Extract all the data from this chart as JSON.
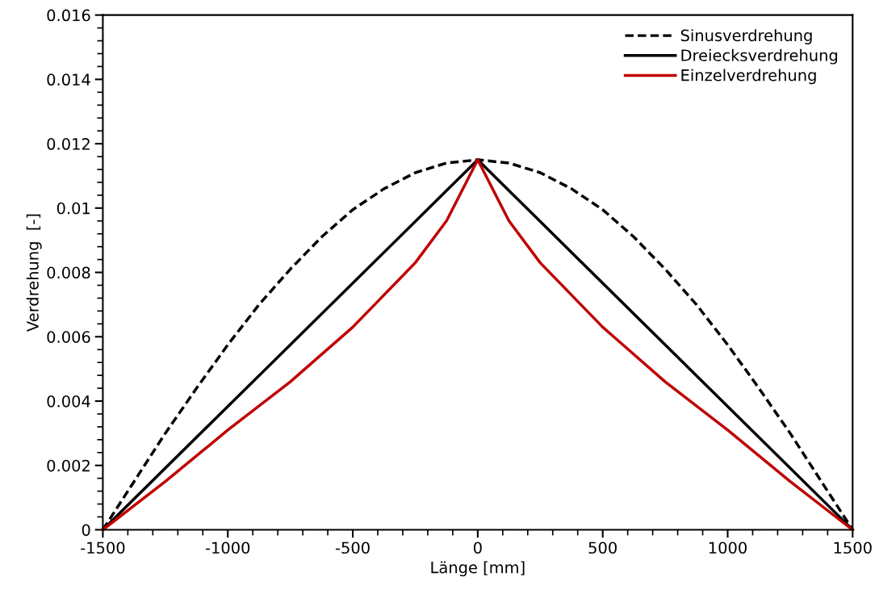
{
  "chart_data": {
    "type": "line",
    "xlabel": "Länge [mm]",
    "ylabel": "Verdrehung  [-]",
    "xlim": [
      -1500,
      1500
    ],
    "xticks": [
      -1500,
      -1000,
      -500,
      0,
      500,
      1000,
      1500
    ],
    "ylim": [
      0,
      0.016
    ],
    "yticks": [
      {
        "value": 0,
        "label": "0"
      },
      0.002,
      0.004,
      0.006,
      0.008,
      0.01,
      0.012,
      0.014,
      0.016
    ],
    "grid": false,
    "legend": "top right",
    "marker": "none",
    "series": [
      {
        "name": "Sinusverdrehung",
        "color": "#000000",
        "line_style": "dashed",
        "x": [
          -1500,
          -1375,
          -1250,
          -1125,
          -1000,
          -875,
          -750,
          -625,
          -500,
          -375,
          -250,
          -125,
          0,
          125,
          250,
          375,
          500,
          625,
          750,
          875,
          1000,
          1125,
          1250,
          1375,
          1500
        ],
        "values": [
          0,
          0.0015,
          0.003,
          0.0044,
          0.00575,
          0.007,
          0.0081,
          0.0091,
          0.00995,
          0.0106,
          0.0111,
          0.0114,
          0.0115,
          0.0114,
          0.0111,
          0.0106,
          0.00995,
          0.0091,
          0.0081,
          0.007,
          0.00575,
          0.0044,
          0.003,
          0.0015,
          0
        ]
      },
      {
        "name": "Dreiecksverdrehung",
        "color": "#000000",
        "line_style": "solid",
        "x": [
          -1500,
          0,
          1500
        ],
        "values": [
          0,
          0.0115,
          0
        ]
      },
      {
        "name": "Einzelverdrehung",
        "color": "#c00000",
        "line_style": "solid",
        "x": [
          -1500,
          -1250,
          -1000,
          -750,
          -500,
          -250,
          -125,
          0,
          125,
          250,
          500,
          750,
          1000,
          1250,
          1500
        ],
        "values": [
          0,
          0.0015,
          0.0031,
          0.0046,
          0.0063,
          0.0083,
          0.0096,
          0.0115,
          0.0096,
          0.0083,
          0.0063,
          0.0046,
          0.0031,
          0.0015,
          0
        ]
      }
    ]
  }
}
